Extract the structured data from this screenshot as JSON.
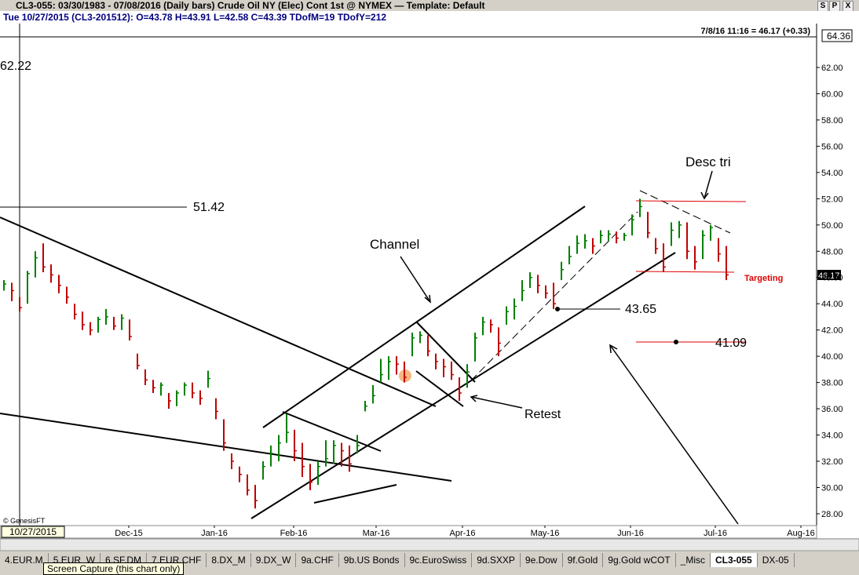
{
  "window": {
    "title": "CL3-055:  03/30/1983 - 07/08/2016  (Daily bars)   Crude Oil NY (Elec) Cont 1st @ NYMEX  —  Template: Default",
    "buttons": [
      "S",
      "P",
      "X"
    ],
    "info": "Tue   10/27/2015  (CL3-201512):  O=43.78  H=43.91  L=42.58  C=43.39  TDofM=19  TDofY=212",
    "tabs": [
      "4.EUR.M",
      "5.EUR_W",
      "6.SF.DM",
      "7.EUR.CHF",
      "8.DX_M",
      "9.DX_W",
      "9a.CHF",
      "9b.US Bonds",
      "9c.EuroSwiss",
      "9d.SXXP",
      "9e.Dow",
      "9f.Gold",
      "9g.Gold wCOT",
      "_Misc",
      "CL3-055",
      "DX-05"
    ],
    "tooltip": "Screen Capture (this chart only)"
  },
  "chart_data": {
    "type": "ohlc",
    "subtitle": "7/8/16 11:16 = 46.17 (+0.33)",
    "top_label": "64.36",
    "last_price_label": "46.17",
    "cursor_label": "10/27/2015",
    "copyright": "© GenesisFT",
    "annotations": [
      "62.22",
      "51.42",
      "Channel",
      "Retest",
      "43.65",
      "41.09",
      "Desc tri",
      "Targeting"
    ],
    "up_color": "#008000",
    "down_color": "#c00000",
    "xlim": [
      -0.5,
      103.5
    ],
    "ylim": [
      27.1,
      64.33
    ],
    "xticks": [
      {
        "value": 15.9,
        "label": "Dec-15"
      },
      {
        "value": 26.8,
        "label": "Jan-16"
      },
      {
        "value": 36.9,
        "label": "Feb-16"
      },
      {
        "value": 47.4,
        "label": "Mar-16"
      },
      {
        "value": 58.4,
        "label": "Apr-16"
      },
      {
        "value": 68.9,
        "label": "May-16"
      },
      {
        "value": 79.8,
        "label": "Jun-16"
      },
      {
        "value": 90.6,
        "label": "Jul-16"
      },
      {
        "value": 101.5,
        "label": "Aug-16"
      }
    ],
    "yticks": [
      {
        "value": 28,
        "label": "28.00"
      },
      {
        "value": 30,
        "label": "30.00"
      },
      {
        "value": 32,
        "label": "32.00"
      },
      {
        "value": 34,
        "label": "34.00"
      },
      {
        "value": 36,
        "label": "36.00"
      },
      {
        "value": 38,
        "label": "38.00"
      },
      {
        "value": 40,
        "label": "40.00"
      },
      {
        "value": 42,
        "label": "42.00"
      },
      {
        "value": 44,
        "label": "44.00"
      },
      {
        "value": 46,
        "label": "46.00"
      },
      {
        "value": 48,
        "label": "48.00"
      },
      {
        "value": 50,
        "label": "50.00"
      },
      {
        "value": 52,
        "label": "52.00"
      },
      {
        "value": 54,
        "label": "54.00"
      },
      {
        "value": 56,
        "label": "56.00"
      },
      {
        "value": 58,
        "label": "58.00"
      },
      {
        "value": 60,
        "label": "60.00"
      },
      {
        "value": 62,
        "label": "62.00"
      }
    ],
    "high": [
      45.8,
      45.6,
      44.5,
      46.5,
      48.0,
      48.6,
      47.0,
      46.2,
      45.3,
      44.0,
      43.4,
      42.6,
      43.0,
      43.6,
      43.0,
      43.2,
      42.8,
      40.2,
      39.0,
      38.2,
      38.0,
      37.2,
      37.4,
      38.0,
      38.0,
      37.4,
      38.9,
      36.8,
      35.2,
      32.6,
      31.6,
      31.0,
      30.2,
      32.0,
      33.2,
      34.0,
      35.6,
      34.4,
      33.4,
      31.8,
      32.0,
      33.6,
      33.6,
      33.4,
      33.2,
      34.0,
      36.6,
      37.8,
      39.8,
      40.0,
      40.0,
      39.6,
      41.8,
      41.9,
      41.6,
      40.2,
      39.8,
      39.6,
      38.4,
      39.4,
      41.8,
      43.0,
      42.8,
      42.2,
      43.8,
      44.4,
      45.8,
      46.4,
      46.2,
      45.4,
      45.6,
      47.2,
      48.4,
      49.2,
      49.3,
      49.0,
      49.6,
      49.6,
      49.5,
      49.4,
      50.8,
      52.0,
      51.0,
      49.0,
      48.6,
      50.2,
      50.3,
      50.2,
      48.4,
      49.6,
      50.0,
      49.0,
      48.4
    ],
    "low": [
      45.0,
      44.2,
      43.4,
      44.0,
      46.0,
      46.4,
      45.6,
      44.8,
      44.0,
      42.8,
      42.0,
      41.6,
      41.8,
      42.4,
      42.0,
      42.0,
      41.2,
      39.0,
      37.8,
      37.2,
      37.0,
      36.0,
      36.2,
      37.0,
      36.8,
      36.3,
      37.6,
      35.2,
      32.8,
      31.4,
      30.4,
      29.4,
      28.4,
      30.6,
      31.6,
      32.0,
      33.4,
      32.0,
      30.8,
      29.8,
      30.2,
      31.6,
      31.8,
      31.6,
      31.2,
      32.6,
      35.8,
      36.4,
      38.0,
      38.2,
      38.6,
      38.0,
      40.0,
      41.0,
      40.0,
      39.0,
      38.4,
      38.2,
      36.6,
      37.6,
      39.6,
      41.6,
      41.8,
      40.0,
      42.4,
      42.8,
      44.2,
      45.2,
      44.8,
      44.4,
      43.6,
      45.8,
      47.0,
      47.8,
      48.2,
      47.8,
      48.6,
      48.8,
      48.6,
      48.8,
      49.2,
      50.6,
      49.0,
      47.8,
      46.4,
      48.4,
      49.0,
      47.4,
      46.6,
      47.4,
      48.8,
      47.2,
      45.8
    ],
    "close": [
      45.5,
      45.0,
      43.7,
      46.3,
      47.5,
      46.8,
      46.2,
      45.4,
      44.5,
      43.2,
      42.4,
      42.0,
      42.8,
      43.0,
      42.3,
      42.9,
      41.5,
      39.3,
      38.2,
      37.6,
      37.8,
      36.6,
      37.2,
      37.8,
      37.2,
      36.8,
      38.3,
      35.8,
      33.4,
      32.0,
      31.0,
      29.8,
      29.0,
      31.6,
      32.6,
      33.4,
      34.2,
      32.8,
      31.6,
      30.4,
      31.6,
      32.2,
      33.2,
      32.8,
      31.8,
      33.2,
      36.2,
      37.0,
      38.6,
      39.6,
      39.4,
      38.4,
      41.4,
      41.6,
      40.4,
      39.6,
      39.2,
      38.6,
      37.2,
      38.8,
      41.4,
      42.6,
      42.4,
      41.0,
      43.4,
      43.8,
      45.0,
      46.0,
      45.4,
      44.8,
      44.0,
      46.6,
      47.6,
      48.6,
      48.8,
      48.4,
      49.2,
      49.3,
      49.0,
      49.2,
      50.4,
      51.4,
      49.4,
      48.2,
      46.8,
      49.6,
      50.0,
      48.0,
      47.2,
      49.2,
      49.8,
      47.8,
      46.2
    ]
  }
}
